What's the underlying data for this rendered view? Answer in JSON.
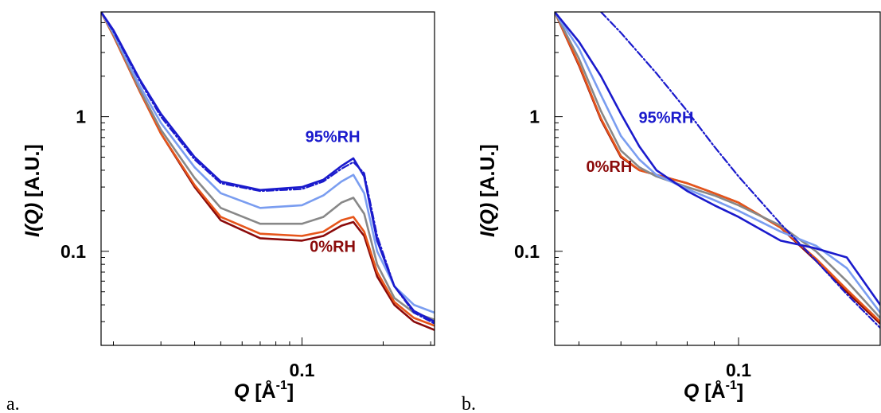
{
  "chart_data": [
    {
      "type": "line",
      "panel_label": "a.",
      "x_scale": "log",
      "y_scale": "log",
      "xlim": [
        0.018,
        0.31
      ],
      "ylim": [
        0.02,
        6
      ],
      "xlabel": "Q [Å⁻¹]",
      "ylabel": "I(Q) [A.U.]",
      "xtick_labels": [
        {
          "value": 0.1,
          "label": "0.1"
        }
      ],
      "ytick_labels": [
        {
          "value": 0.1,
          "label": "0.1"
        },
        {
          "value": 1,
          "label": "1"
        }
      ],
      "annotations": [
        {
          "text": "95%RH",
          "x": 0.13,
          "y": 0.65,
          "color": "#1a1acc"
        },
        {
          "text": "0%RH",
          "x": 0.13,
          "y": 0.099,
          "color": "#8b0a0a"
        }
      ],
      "series": [
        {
          "color": "#8b0a0a",
          "style": "solid",
          "x": [
            0.018,
            0.02,
            0.025,
            0.03,
            0.04,
            0.05,
            0.07,
            0.1,
            0.12,
            0.14,
            0.155,
            0.17,
            0.19,
            0.22,
            0.26,
            0.31
          ],
          "y": [
            6.0,
            4.0,
            1.55,
            0.75,
            0.3,
            0.17,
            0.125,
            0.12,
            0.13,
            0.155,
            0.165,
            0.13,
            0.065,
            0.04,
            0.03,
            0.026
          ]
        },
        {
          "color": "#e6551a",
          "style": "solid",
          "x": [
            0.018,
            0.02,
            0.025,
            0.03,
            0.04,
            0.05,
            0.07,
            0.1,
            0.12,
            0.14,
            0.155,
            0.17,
            0.19,
            0.22,
            0.26,
            0.31
          ],
          "y": [
            6.0,
            4.0,
            1.55,
            0.75,
            0.31,
            0.18,
            0.135,
            0.13,
            0.14,
            0.17,
            0.18,
            0.14,
            0.07,
            0.042,
            0.032,
            0.028
          ]
        },
        {
          "color": "#888888",
          "style": "solid",
          "x": [
            0.018,
            0.02,
            0.025,
            0.03,
            0.04,
            0.05,
            0.07,
            0.1,
            0.12,
            0.14,
            0.155,
            0.17,
            0.19,
            0.22,
            0.26,
            0.31
          ],
          "y": [
            6.0,
            4.1,
            1.6,
            0.8,
            0.35,
            0.21,
            0.16,
            0.16,
            0.18,
            0.23,
            0.25,
            0.19,
            0.08,
            0.045,
            0.035,
            0.031
          ]
        },
        {
          "color": "#7a9df0",
          "style": "solid",
          "x": [
            0.018,
            0.02,
            0.025,
            0.03,
            0.04,
            0.05,
            0.07,
            0.1,
            0.12,
            0.14,
            0.155,
            0.17,
            0.19,
            0.22,
            0.26,
            0.31
          ],
          "y": [
            6.0,
            4.2,
            1.7,
            0.9,
            0.42,
            0.27,
            0.21,
            0.22,
            0.26,
            0.33,
            0.37,
            0.27,
            0.1,
            0.055,
            0.04,
            0.035
          ]
        },
        {
          "color": "#1a1acc",
          "style": "solid",
          "x": [
            0.018,
            0.02,
            0.025,
            0.03,
            0.04,
            0.05,
            0.07,
            0.1,
            0.12,
            0.14,
            0.155,
            0.17,
            0.19,
            0.22,
            0.26,
            0.31
          ],
          "y": [
            6.0,
            4.4,
            1.9,
            1.05,
            0.5,
            0.33,
            0.285,
            0.3,
            0.34,
            0.43,
            0.49,
            0.36,
            0.12,
            0.055,
            0.036,
            0.03
          ]
        },
        {
          "color": "#1a1acc",
          "style": "dashdot",
          "x": [
            0.018,
            0.02,
            0.025,
            0.03,
            0.04,
            0.05,
            0.07,
            0.1,
            0.12,
            0.14,
            0.155,
            0.17,
            0.19,
            0.22,
            0.26,
            0.31
          ],
          "y": [
            6.0,
            4.3,
            1.85,
            1.0,
            0.48,
            0.32,
            0.28,
            0.29,
            0.33,
            0.41,
            0.46,
            0.38,
            0.13,
            0.055,
            0.035,
            0.029
          ]
        }
      ]
    },
    {
      "type": "line",
      "panel_label": "b.",
      "x_scale": "log",
      "y_scale": "log",
      "xlim": [
        0.045,
        0.185
      ],
      "ylim": [
        0.02,
        6
      ],
      "xlabel": "Q [Å⁻¹]",
      "ylabel": "I(Q) [A.U.]",
      "xtick_labels": [
        {
          "value": 0.1,
          "label": "0.1"
        }
      ],
      "ytick_labels": [
        {
          "value": 0.1,
          "label": "0.1"
        },
        {
          "value": 1,
          "label": "1"
        }
      ],
      "annotations": [
        {
          "text": "95%RH",
          "x": 0.073,
          "y": 0.9,
          "color": "#1a1acc"
        },
        {
          "text": "0%RH",
          "x": 0.057,
          "y": 0.39,
          "color": "#8b0a0a"
        }
      ],
      "series": [
        {
          "color": "#8b0a0a",
          "style": "solid",
          "x": [
            0.045,
            0.05,
            0.055,
            0.06,
            0.065,
            0.07,
            0.08,
            0.09,
            0.1,
            0.12,
            0.14,
            0.16,
            0.185
          ],
          "y": [
            6.0,
            2.4,
            0.95,
            0.5,
            0.4,
            0.37,
            0.32,
            0.27,
            0.23,
            0.15,
            0.085,
            0.05,
            0.029
          ]
        },
        {
          "color": "#e6551a",
          "style": "solid",
          "x": [
            0.045,
            0.05,
            0.055,
            0.06,
            0.065,
            0.07,
            0.08,
            0.09,
            0.1,
            0.12,
            0.14,
            0.16,
            0.185
          ],
          "y": [
            6.0,
            2.45,
            0.97,
            0.51,
            0.4,
            0.37,
            0.32,
            0.27,
            0.23,
            0.15,
            0.088,
            0.052,
            0.03
          ]
        },
        {
          "color": "#888888",
          "style": "solid",
          "x": [
            0.045,
            0.05,
            0.055,
            0.06,
            0.065,
            0.07,
            0.08,
            0.09,
            0.1,
            0.12,
            0.14,
            0.16,
            0.185
          ],
          "y": [
            6.0,
            2.7,
            1.1,
            0.56,
            0.42,
            0.36,
            0.3,
            0.26,
            0.22,
            0.155,
            0.1,
            0.06,
            0.032
          ]
        },
        {
          "color": "#7a9df0",
          "style": "solid",
          "x": [
            0.045,
            0.05,
            0.055,
            0.06,
            0.065,
            0.07,
            0.08,
            0.09,
            0.1,
            0.12,
            0.14,
            0.16,
            0.185
          ],
          "y": [
            6.0,
            3.2,
            1.45,
            0.72,
            0.48,
            0.37,
            0.29,
            0.24,
            0.2,
            0.14,
            0.11,
            0.075,
            0.035
          ]
        },
        {
          "color": "#1a1acc",
          "style": "solid",
          "x": [
            0.045,
            0.05,
            0.055,
            0.06,
            0.065,
            0.07,
            0.08,
            0.09,
            0.1,
            0.12,
            0.14,
            0.16,
            0.185
          ],
          "y": [
            6.0,
            3.6,
            2.0,
            1.05,
            0.6,
            0.4,
            0.28,
            0.22,
            0.18,
            0.12,
            0.105,
            0.09,
            0.04
          ]
        },
        {
          "color": "#1a1acc",
          "style": "dashdot",
          "x": [
            0.055,
            0.06,
            0.07,
            0.08,
            0.09,
            0.1,
            0.12,
            0.14,
            0.16,
            0.185
          ],
          "y": [
            6.0,
            4.2,
            2.1,
            1.1,
            0.6,
            0.36,
            0.16,
            0.085,
            0.048,
            0.027
          ]
        }
      ]
    }
  ]
}
